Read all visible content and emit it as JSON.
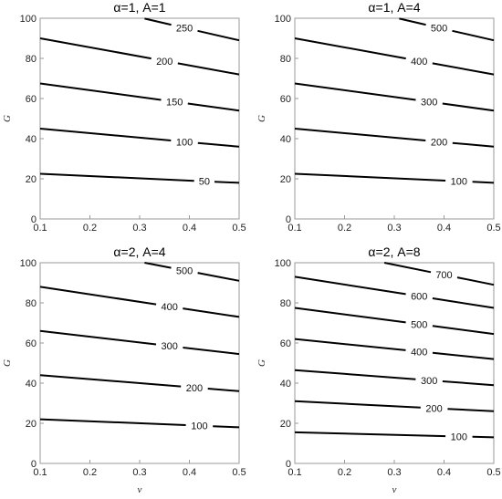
{
  "chart_data": [
    {
      "type": "contour",
      "title": "α=1, A=1",
      "xlabel": "",
      "ylabel": "G",
      "xlim": [
        0.1,
        0.5
      ],
      "ylim": [
        0,
        100
      ],
      "xticks": [
        "0.1",
        "0.2",
        "0.3",
        "0.4",
        "0.5"
      ],
      "yticks": [
        "0",
        "20",
        "40",
        "60",
        "80",
        "100"
      ],
      "series": [
        {
          "label": "50",
          "x": [
            0.1,
            0.5
          ],
          "y": [
            22.5,
            18.0
          ],
          "label_x": 0.43
        },
        {
          "label": "100",
          "x": [
            0.1,
            0.5
          ],
          "y": [
            45.0,
            36.0
          ],
          "label_x": 0.39
        },
        {
          "label": "150",
          "x": [
            0.1,
            0.5
          ],
          "y": [
            67.5,
            54.0
          ],
          "label_x": 0.37
        },
        {
          "label": "200",
          "x": [
            0.1,
            0.5
          ],
          "y": [
            90.0,
            72.0
          ],
          "label_x": 0.35
        },
        {
          "label": "250",
          "x": [
            0.31,
            0.5
          ],
          "y": [
            99.8,
            89.0
          ],
          "label_x": 0.39
        }
      ]
    },
    {
      "type": "contour",
      "title": "α=1, A=4",
      "xlabel": "",
      "ylabel": "G",
      "xlim": [
        0.1,
        0.5
      ],
      "ylim": [
        0,
        100
      ],
      "xticks": [
        "0.1",
        "0.2",
        "0.3",
        "0.4",
        "0.5"
      ],
      "yticks": [
        "0",
        "20",
        "40",
        "60",
        "80",
        "100"
      ],
      "series": [
        {
          "label": "100",
          "x": [
            0.1,
            0.5
          ],
          "y": [
            22.5,
            18.0
          ],
          "label_x": 0.43
        },
        {
          "label": "200",
          "x": [
            0.1,
            0.5
          ],
          "y": [
            45.0,
            36.0
          ],
          "label_x": 0.39
        },
        {
          "label": "300",
          "x": [
            0.1,
            0.5
          ],
          "y": [
            67.5,
            54.0
          ],
          "label_x": 0.37
        },
        {
          "label": "400",
          "x": [
            0.1,
            0.5
          ],
          "y": [
            90.0,
            72.0
          ],
          "label_x": 0.35
        },
        {
          "label": "500",
          "x": [
            0.31,
            0.5
          ],
          "y": [
            99.8,
            89.0
          ],
          "label_x": 0.39
        }
      ]
    },
    {
      "type": "contour",
      "title": "α=2, A=4",
      "xlabel": "v",
      "ylabel": "G",
      "xlim": [
        0.1,
        0.5
      ],
      "ylim": [
        0,
        100
      ],
      "xticks": [
        "0.1",
        "0.2",
        "0.3",
        "0.4",
        "0.5"
      ],
      "yticks": [
        "0",
        "20",
        "40",
        "60",
        "80",
        "100"
      ],
      "series": [
        {
          "label": "100",
          "x": [
            0.1,
            0.5
          ],
          "y": [
            22.0,
            18.0
          ],
          "label_x": 0.42
        },
        {
          "label": "200",
          "x": [
            0.1,
            0.5
          ],
          "y": [
            44.0,
            36.0
          ],
          "label_x": 0.41
        },
        {
          "label": "300",
          "x": [
            0.1,
            0.5
          ],
          "y": [
            66.0,
            54.5
          ],
          "label_x": 0.36
        },
        {
          "label": "400",
          "x": [
            0.1,
            0.5
          ],
          "y": [
            88.0,
            73.0
          ],
          "label_x": 0.36
        },
        {
          "label": "500",
          "x": [
            0.31,
            0.5
          ],
          "y": [
            100.0,
            91.0
          ],
          "label_x": 0.39
        }
      ]
    },
    {
      "type": "contour",
      "title": "α=2, A=8",
      "xlabel": "v",
      "ylabel": "G",
      "xlim": [
        0.1,
        0.5
      ],
      "ylim": [
        0,
        100
      ],
      "xticks": [
        "0.1",
        "0.2",
        "0.3",
        "0.4",
        "0.5"
      ],
      "yticks": [
        "0",
        "20",
        "40",
        "60",
        "80",
        "100"
      ],
      "series": [
        {
          "label": "100",
          "x": [
            0.1,
            0.5
          ],
          "y": [
            15.5,
            13.0
          ],
          "label_x": 0.43
        },
        {
          "label": "200",
          "x": [
            0.1,
            0.5
          ],
          "y": [
            31.0,
            26.0
          ],
          "label_x": 0.38
        },
        {
          "label": "300",
          "x": [
            0.1,
            0.5
          ],
          "y": [
            46.5,
            39.0
          ],
          "label_x": 0.37
        },
        {
          "label": "400",
          "x": [
            0.1,
            0.5
          ],
          "y": [
            62.0,
            52.0
          ],
          "label_x": 0.35
        },
        {
          "label": "500",
          "x": [
            0.1,
            0.5
          ],
          "y": [
            77.5,
            64.5
          ],
          "label_x": 0.35
        },
        {
          "label": "600",
          "x": [
            0.1,
            0.5
          ],
          "y": [
            93.0,
            77.5
          ],
          "label_x": 0.35
        },
        {
          "label": "700",
          "x": [
            0.28,
            0.5
          ],
          "y": [
            100.0,
            89.0
          ],
          "label_x": 0.4
        }
      ]
    }
  ]
}
